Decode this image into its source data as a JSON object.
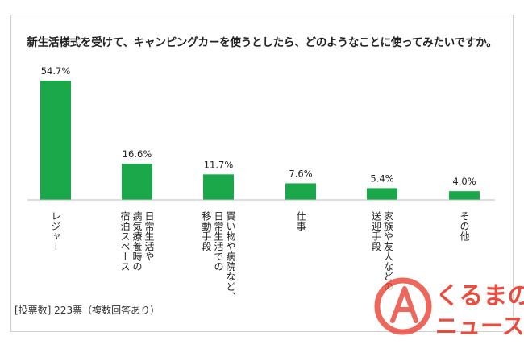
{
  "chart_data": {
    "type": "bar",
    "title": "新生活様式を受けて、キャンピングカーを使うとしたら、どのようなことに使ってみたいですか。",
    "categories": [
      "レジャー",
      "日常生活や病気療養時の宿泊スペース",
      "買い物や病院など、日常生活での移動手段",
      "仕事",
      "家族や友人などの送迎手段",
      "その他"
    ],
    "category_label_columns": [
      [
        "レジャー"
      ],
      [
        "日常生活や",
        "病気療養時の",
        "宿泊スペース"
      ],
      [
        "買い物や病院など、",
        "日常生活での",
        "移動手段"
      ],
      [
        "仕事"
      ],
      [
        "家族や友人などの",
        "送迎手段"
      ],
      [
        "その他"
      ]
    ],
    "values": [
      54.7,
      16.6,
      11.7,
      7.6,
      5.4,
      4.0
    ],
    "data_labels": [
      "54.7%",
      "16.6%",
      "11.7%",
      "7.6%",
      "5.4%",
      "4.0%"
    ],
    "unit": "%",
    "ylim": [
      0,
      54.7
    ],
    "bar_color": "#1aa84b",
    "grid": false,
    "legend": "none",
    "footnote": "[投票数] 223票（複数回答あり）"
  },
  "watermark": {
    "logo_text_top": "くるまの",
    "logo_text_bottom": "ニュース",
    "brand_color": "#e8392a"
  }
}
